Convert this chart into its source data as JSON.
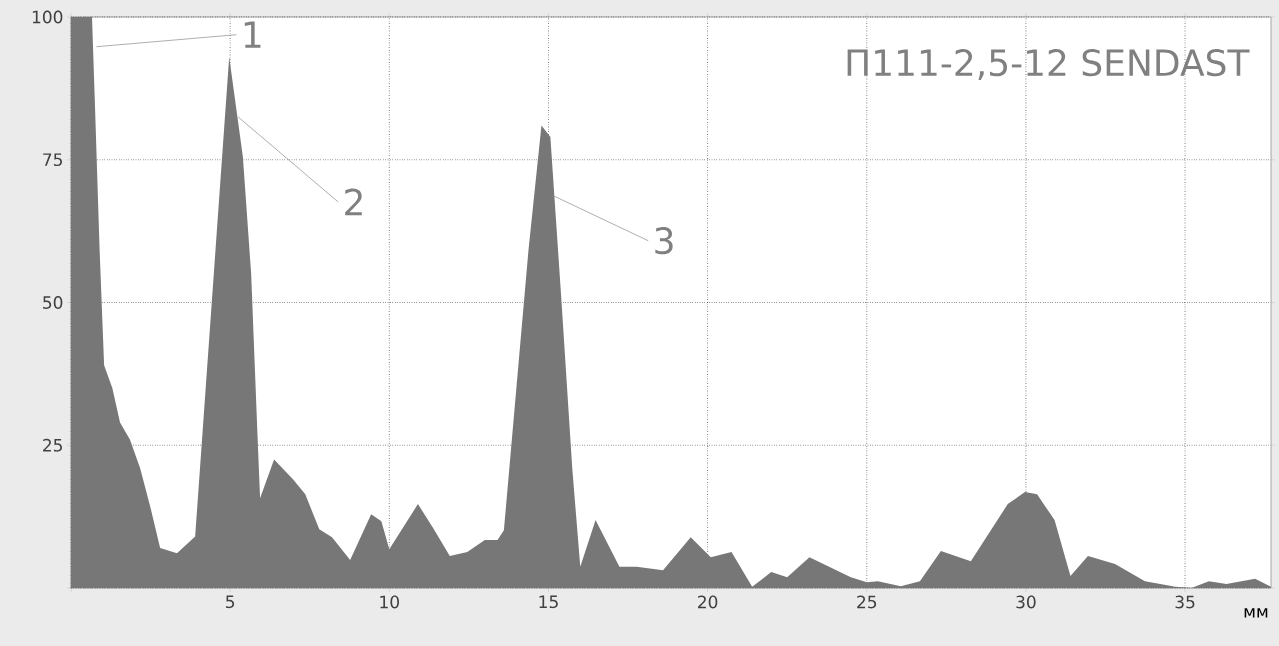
{
  "chart_data": {
    "type": "area",
    "title": "П111-2,5-12 SENDAST",
    "xlabel": "мм",
    "color": "#777777",
    "x": [
      0,
      0.66,
      0.75,
      0.9,
      1.04,
      1.3,
      1.54,
      1.85,
      2.17,
      2.5,
      2.8,
      3.33,
      3.9,
      4.97,
      5.4,
      5.66,
      5.85,
      5.94,
      6.38,
      6.98,
      7.36,
      7.8,
      8.2,
      8.77,
      9.43,
      9.75,
      10.0,
      10.9,
      11.4,
      11.9,
      12.45,
      13.0,
      13.4,
      13.6,
      14.37,
      14.78,
      15.06,
      15.4,
      15.75,
      16.0,
      16.48,
      17.23,
      17.77,
      18.6,
      19.47,
      20.1,
      20.75,
      21.4,
      22.0,
      22.5,
      23.2,
      24.5,
      25.0,
      25.35,
      26.07,
      26.67,
      27.33,
      28.27,
      29.43,
      29.97,
      30.35,
      30.9,
      31.4,
      31.95,
      32.8,
      33.74,
      34.7,
      35.2,
      35.75,
      36.3,
      37.2,
      37.7
    ],
    "values": [
      100,
      100,
      85,
      59,
      39,
      35,
      29,
      26,
      21,
      14,
      7,
      6.1,
      9,
      93,
      75.5,
      55,
      28,
      15.7,
      22.5,
      19,
      16.4,
      10.3,
      8.9,
      4.9,
      12.9,
      11.7,
      6.8,
      14.7,
      10.3,
      5.6,
      6.3,
      8.4,
      8.4,
      10.1,
      59,
      81,
      79,
      51,
      20.8,
      3.7,
      11.9,
      3.7,
      3.7,
      3.1,
      8.9,
      5.4,
      6.3,
      0.2,
      2.8,
      1.9,
      5.4,
      1.9,
      1.0,
      1.2,
      0.3,
      1.2,
      6.5,
      4.7,
      14.7,
      16.8,
      16.4,
      11.9,
      2.1,
      5.6,
      4.2,
      1.2,
      0.2,
      0,
      1.2,
      0.7,
      1.6,
      0.2
    ],
    "xlim": [
      0,
      37.7
    ],
    "ylim": [
      0,
      100
    ],
    "xticks": [
      {
        "value": 0,
        "label": null
      },
      5,
      10,
      15,
      20,
      25,
      30,
      35
    ],
    "yticks": [
      {
        "value": 0,
        "label": null
      },
      25,
      50,
      75,
      100
    ],
    "grid": true,
    "annotations": [
      {
        "text": "1",
        "x": 0.8,
        "y": 94.8
      },
      {
        "text": "2",
        "x": 5.25,
        "y": 82.5
      },
      {
        "text": "3",
        "x": 15.15,
        "y": 68.7
      }
    ]
  }
}
